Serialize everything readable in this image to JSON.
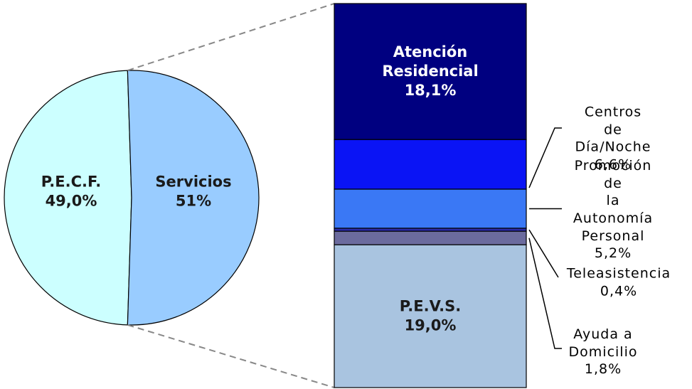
{
  "chart_data": {
    "type": "pie",
    "categories": [
      "P.E.C.F.",
      "Servicios"
    ],
    "values": [
      49.0,
      51
    ],
    "value_labels": [
      "49,0%",
      "51%"
    ],
    "colors": [
      "#ccffff",
      "#99ccff"
    ],
    "breakdown": {
      "type": "bar",
      "categories": [
        "Atención\nResidencial",
        "Centros de\nDía/Noche",
        "Promoción de\nla Autonomía\nPersonal",
        "Teleasistencia",
        "Ayuda a\nDomicilio",
        "P.E.V.S."
      ],
      "values": [
        18.1,
        6.6,
        5.2,
        0.4,
        1.8,
        19.0
      ],
      "value_labels": [
        "18,1%",
        "6,6%",
        "5,2%",
        "0,4%",
        "1,8%",
        "19,0%"
      ],
      "colors": [
        "#000080",
        "#0a14f5",
        "#3a78f5",
        "#2a2aa8",
        "#6b6b9e",
        "#a9c4e0"
      ]
    }
  }
}
